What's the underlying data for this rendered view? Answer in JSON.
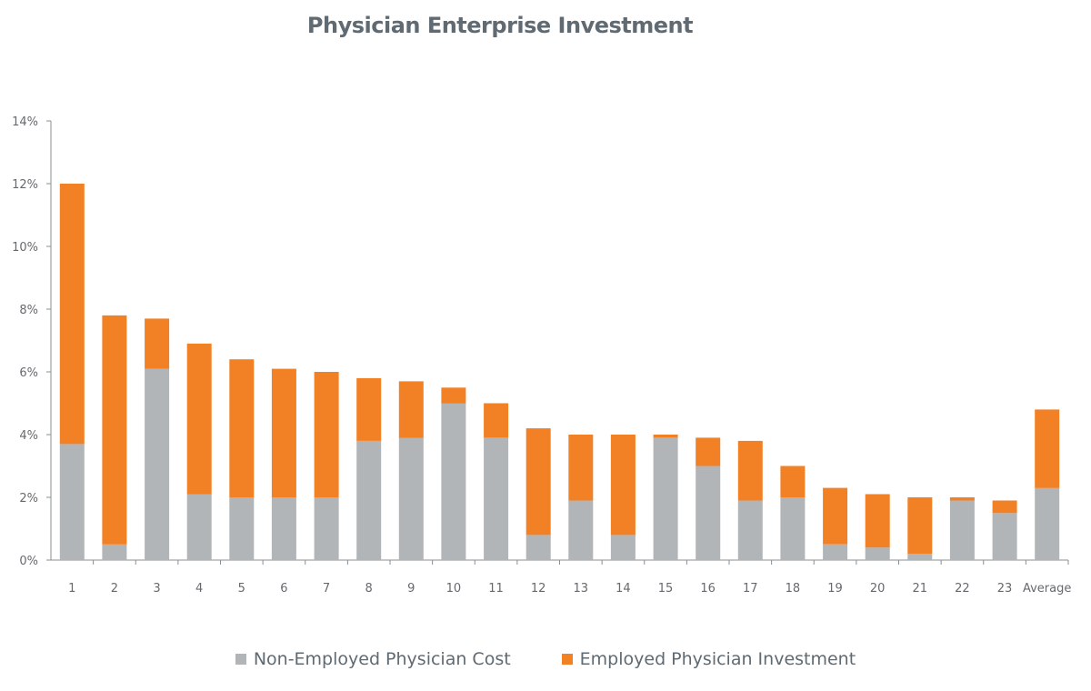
{
  "chart_data": {
    "type": "bar",
    "stacked": true,
    "title": "Physician Enterprise Investment",
    "xlabel": "",
    "ylabel": "",
    "ylim": [
      0,
      14
    ],
    "yticks": [
      "0%",
      "2%",
      "4%",
      "6%",
      "8%",
      "10%",
      "12%",
      "14%"
    ],
    "categories": [
      "1",
      "2",
      "3",
      "4",
      "5",
      "6",
      "7",
      "8",
      "9",
      "10",
      "11",
      "12",
      "13",
      "14",
      "15",
      "16",
      "17",
      "18",
      "19",
      "20",
      "21",
      "22",
      "23",
      "Average"
    ],
    "series": [
      {
        "name": "Non-Employed Physician Cost",
        "color": "#b1b5b7",
        "values": [
          3.7,
          0.5,
          6.1,
          2.1,
          2.0,
          2.0,
          2.0,
          3.8,
          3.9,
          5.0,
          3.9,
          0.8,
          1.9,
          0.8,
          3.9,
          3.0,
          1.9,
          2.0,
          0.5,
          0.4,
          0.2,
          1.9,
          1.5,
          2.3
        ]
      },
      {
        "name": "Employed Physician Investment",
        "color": "#f28025",
        "values": [
          8.3,
          7.3,
          1.6,
          4.8,
          4.4,
          4.1,
          4.0,
          2.0,
          1.8,
          0.5,
          1.1,
          3.4,
          2.1,
          3.2,
          0.1,
          0.9,
          1.9,
          1.0,
          1.8,
          1.7,
          1.8,
          0.1,
          0.4,
          2.5
        ]
      }
    ],
    "legend_position": "bottom",
    "grid": false
  }
}
